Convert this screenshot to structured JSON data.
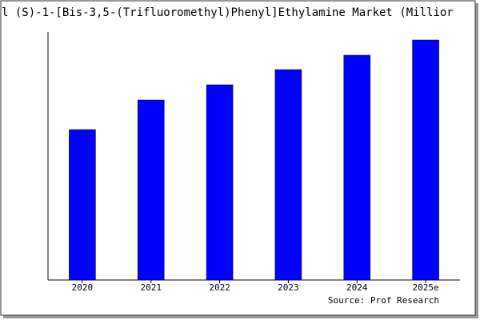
{
  "chart_data": {
    "type": "bar",
    "title": "l (S)-1-[Bis-3,5-(Trifluoromethyl)Phenyl]Ethylamine Market (Millior",
    "categories": [
      "2020",
      "2021",
      "2022",
      "2023",
      "2024",
      "2025e"
    ],
    "values": [
      188,
      225,
      244,
      263,
      281,
      300
    ],
    "color": "#0000ff",
    "source": "Source: Prof Research"
  }
}
